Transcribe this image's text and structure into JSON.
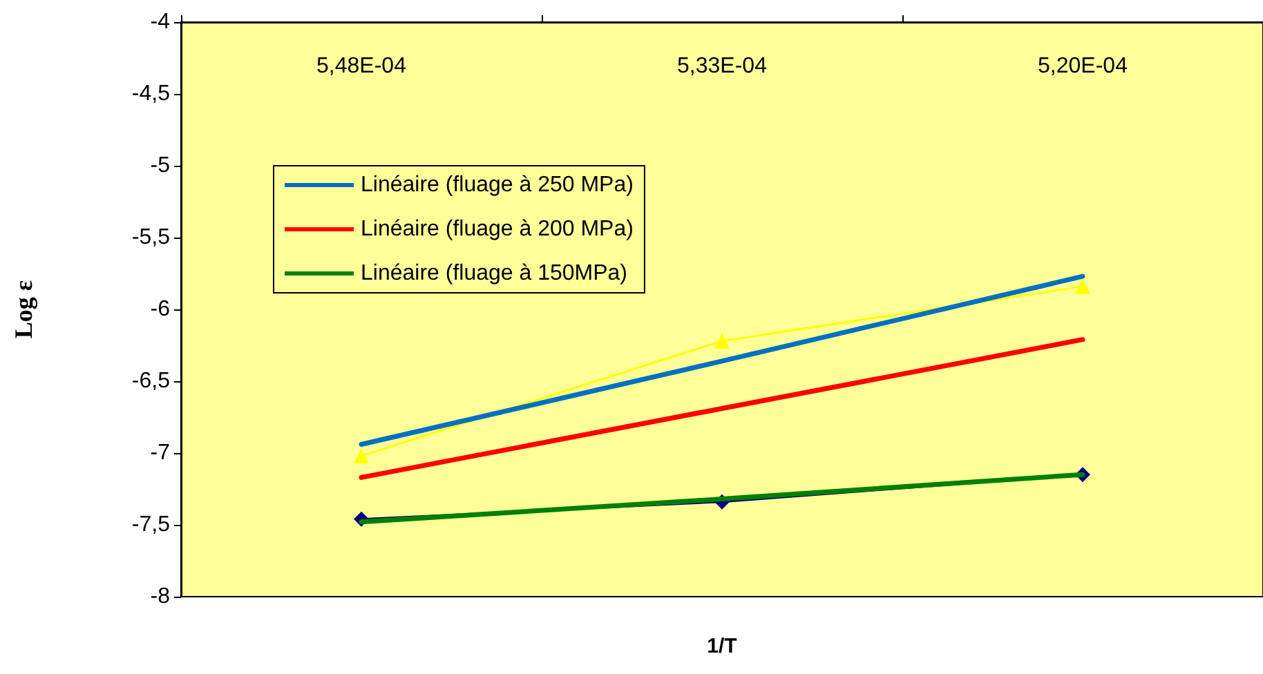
{
  "chart_data": {
    "type": "line",
    "xlabel": "1/T",
    "ylabel": "Log ε",
    "categories": [
      "5,48E-04",
      "5,33E-04",
      "5,20E-04"
    ],
    "ylim": [
      -8,
      -4
    ],
    "yticks": [
      -8,
      {
        "value": -7.5,
        "label": "-7,5"
      },
      -7,
      {
        "value": -6.5,
        "label": "-6,5"
      },
      -6,
      {
        "value": -5.5,
        "label": "-5,5"
      },
      -5,
      {
        "value": -4.5,
        "label": "-4,5"
      },
      -4
    ],
    "grid": false,
    "legend": "top left",
    "series": [
      {
        "color": "#ffff00",
        "marker": "triangle",
        "values": [
          -7.02,
          -6.22,
          -5.84
        ]
      },
      {
        "color": "#000080",
        "marker": "diamond",
        "values": [
          -7.46,
          -7.34,
          -7.15
        ]
      },
      {
        "name": "Linéaire (fluage à 250 MPa)",
        "color": "#0070c0",
        "marker": "none",
        "values": [
          -6.94,
          -6.36,
          -5.77
        ]
      },
      {
        "name": "Linéaire (fluage à 200 MPa)",
        "color": "#ff0000",
        "marker": "none",
        "values": [
          -7.17,
          -6.69,
          -6.21
        ]
      },
      {
        "name": "Linéaire (fluage à 150MPa)",
        "color": "#008000",
        "marker": "none",
        "values": [
          -7.48,
          -7.32,
          -7.15
        ]
      }
    ]
  }
}
